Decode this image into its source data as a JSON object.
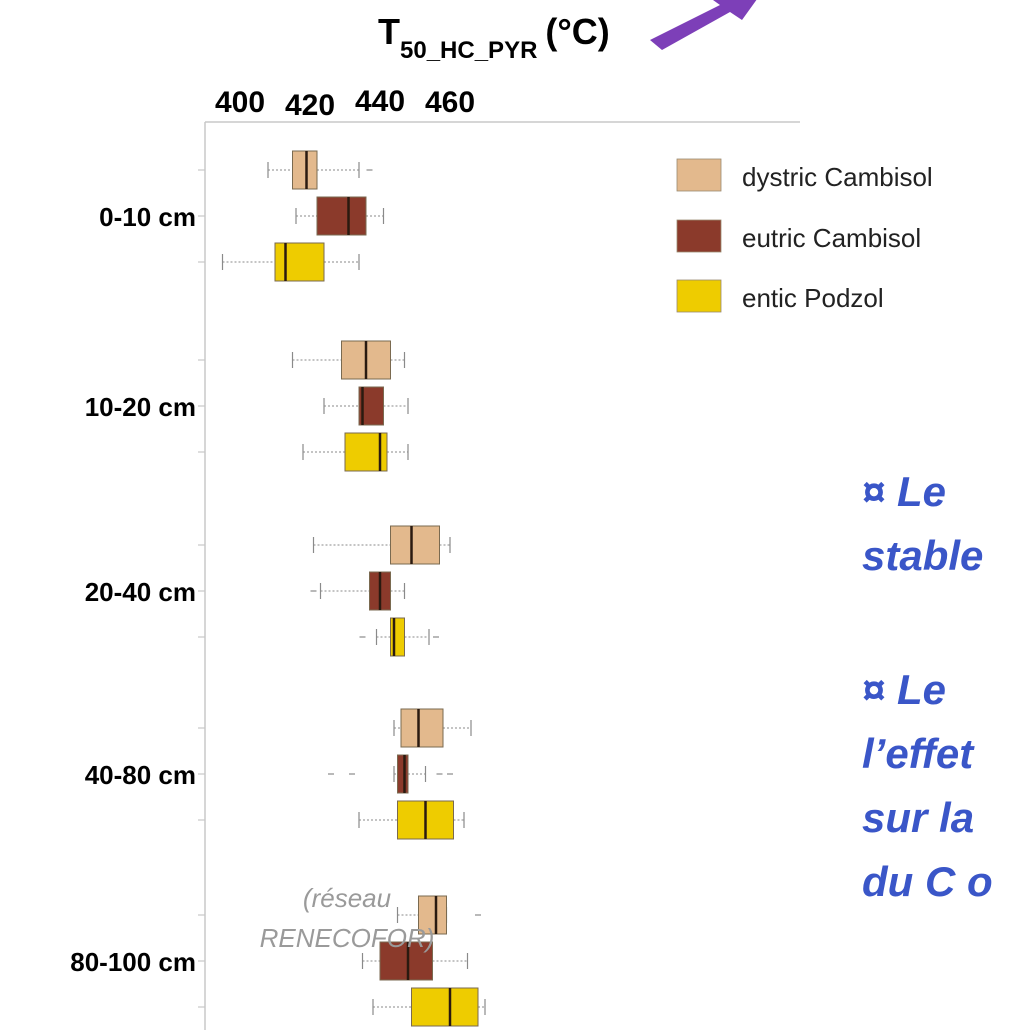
{
  "header": {
    "title_main": "T",
    "title_sub": "50_HC_PYR",
    "title_unit": "(°C)"
  },
  "chart_data": {
    "type": "box",
    "title": "T50_HC_PYR (°C)",
    "xlabel": "T50_HC_PYR (°C)",
    "ylabel": "",
    "xlim": [
      397,
      474
    ],
    "x_ticks": [
      "400",
      "420",
      "440",
      "460"
    ],
    "legend_position": "top-right",
    "categories": [
      "0-10 cm",
      "10-20 cm",
      "20-40 cm",
      "40-80 cm",
      "80-100 cm"
    ],
    "series": [
      {
        "name": "dystric Cambisol",
        "color": "#e3b98d",
        "boxes": [
          {
            "min": 408,
            "q1": 415,
            "median": 419,
            "q3": 422,
            "max": 434,
            "outliers": [
              437
            ]
          },
          {
            "min": 415,
            "q1": 429,
            "median": 436,
            "q3": 443,
            "max": 447,
            "outliers": []
          },
          {
            "min": 421,
            "q1": 443,
            "median": 449,
            "q3": 457,
            "max": 460,
            "outliers": []
          },
          {
            "min": 444,
            "q1": 446,
            "median": 451,
            "q3": 458,
            "max": 466,
            "outliers": []
          },
          {
            "min": 445,
            "q1": 451,
            "median": 456,
            "q3": 459,
            "max": 459,
            "outliers": [
              468
            ]
          }
        ]
      },
      {
        "name": "eutric Cambisol",
        "color": "#8b3a2b",
        "boxes": [
          {
            "min": 416,
            "q1": 422,
            "median": 431,
            "q3": 436,
            "max": 441,
            "outliers": []
          },
          {
            "min": 424,
            "q1": 434,
            "median": 435,
            "q3": 441,
            "max": 448,
            "outliers": []
          },
          {
            "min": 423,
            "q1": 437,
            "median": 440,
            "q3": 443,
            "max": 447,
            "outliers": [
              421
            ]
          },
          {
            "min": 444,
            "q1": 445,
            "median": 447,
            "q3": 448,
            "max": 453,
            "outliers": [
              426,
              432,
              457,
              460
            ]
          },
          {
            "min": 435,
            "q1": 440,
            "median": 448,
            "q3": 455,
            "max": 465,
            "outliers": []
          }
        ]
      },
      {
        "name": "entic Podzol",
        "color": "#eecc00",
        "boxes": [
          {
            "min": 395,
            "q1": 410,
            "median": 413,
            "q3": 424,
            "max": 434,
            "outliers": []
          },
          {
            "min": 418,
            "q1": 430,
            "median": 440,
            "q3": 442,
            "max": 448,
            "outliers": []
          },
          {
            "min": 439,
            "q1": 443,
            "median": 444,
            "q3": 447,
            "max": 454,
            "outliers": [
              435,
              456
            ]
          },
          {
            "min": 434,
            "q1": 445,
            "median": 453,
            "q3": 461,
            "max": 464,
            "outliers": []
          },
          {
            "min": 438,
            "q1": 449,
            "median": 460,
            "q3": 468,
            "max": 470,
            "outliers": []
          }
        ]
      }
    ]
  },
  "annotation": {
    "line1": "(réseau",
    "line2": "RENECOFOR)"
  },
  "side_text": {
    "line1": "¤  Le",
    "line2": "stable",
    "line3": "¤  Le",
    "line4": "l’effet",
    "line5": "sur la",
    "line6": "du C o"
  },
  "arrow": {
    "color": "#7d3fb8"
  }
}
